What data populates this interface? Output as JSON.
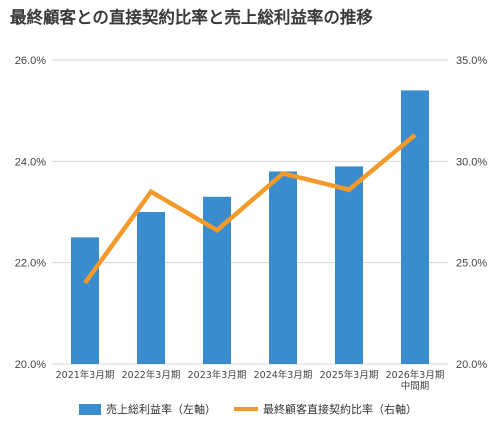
{
  "title": "最終顧客との直接契約比率と売上総利益率の推移",
  "chart_data": {
    "type": "bar+line",
    "categories": [
      "2021年3月期",
      "2022年3月期",
      "2023年3月期",
      "2024年3月期",
      "2025年3月期",
      "2026年3月期\n中間期"
    ],
    "series": [
      {
        "name": "売上総利益率（左軸）",
        "type": "bar",
        "axis": "left",
        "color": "#3a8ccf",
        "values": [
          22.5,
          23.0,
          23.3,
          23.8,
          23.9,
          25.4
        ]
      },
      {
        "name": "最終顧客直接契約比率（右軸）",
        "type": "line",
        "axis": "right",
        "color": "#f39a2b",
        "values": [
          24.0,
          28.5,
          26.6,
          29.4,
          28.6,
          31.3
        ]
      }
    ],
    "y_left": {
      "ylim": [
        20.0,
        26.0
      ],
      "ticks": [
        "20.0%",
        "22.0%",
        "24.0%",
        "26.0%"
      ]
    },
    "y_right": {
      "ylim": [
        20.0,
        35.0
      ],
      "ticks": [
        "20.0%",
        "25.0%",
        "30.0%",
        "35.0%"
      ]
    },
    "grid": true,
    "legend_position": "bottom"
  }
}
